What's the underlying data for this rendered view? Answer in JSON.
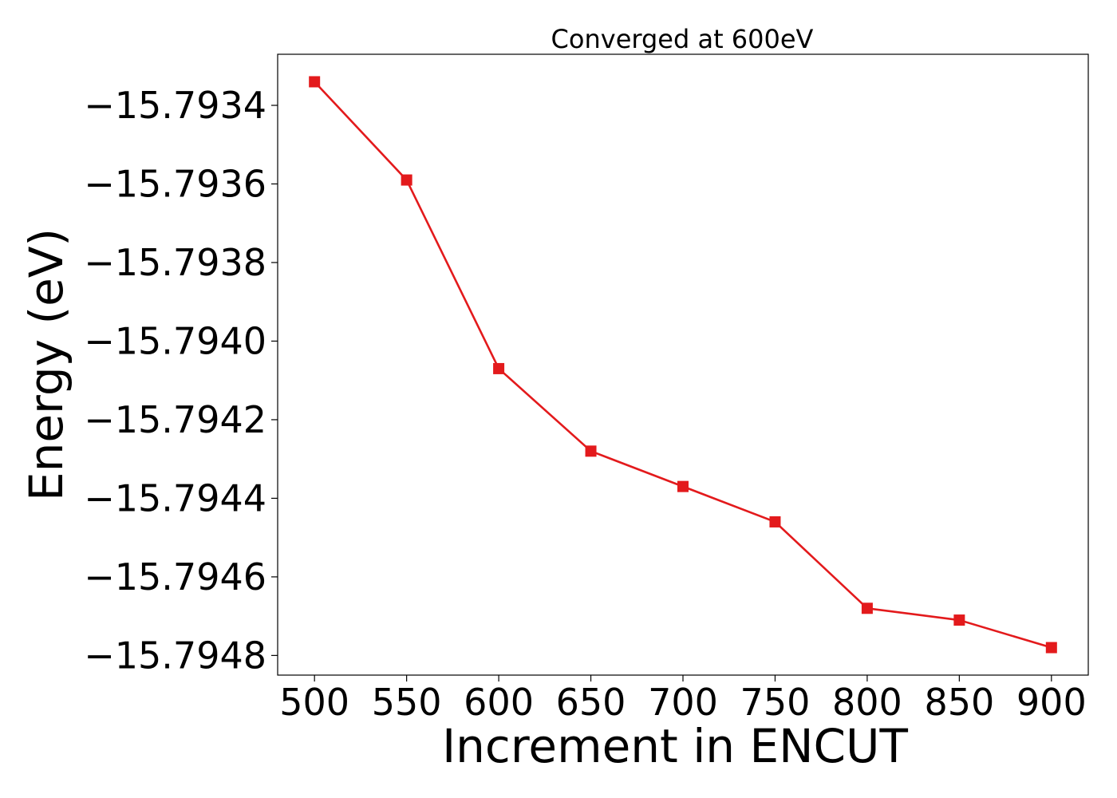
{
  "chart_data": {
    "type": "line",
    "title": "Converged at 600eV",
    "xlabel": "Increment in ENCUT",
    "ylabel": "Energy (eV)",
    "x": [
      500,
      550,
      600,
      650,
      700,
      750,
      800,
      850,
      900
    ],
    "series": [
      {
        "values": [
          -15.79334,
          -15.79359,
          -15.79407,
          -15.79428,
          -15.79437,
          -15.79446,
          -15.79468,
          -15.79471,
          -15.79478
        ],
        "color": "#e31a1c",
        "marker": "square"
      }
    ],
    "xticks": [
      500,
      550,
      600,
      650,
      700,
      750,
      800,
      850,
      900
    ],
    "xtick_labels": [
      "500",
      "550",
      "600",
      "650",
      "700",
      "750",
      "800",
      "850",
      "900"
    ],
    "yticks": [
      -15.7934,
      -15.7936,
      -15.7938,
      -15.794,
      -15.7942,
      -15.7944,
      -15.7946,
      -15.7948
    ],
    "ytick_labels": [
      "−15.7934",
      "−15.7936",
      "−15.7938",
      "−15.7940",
      "−15.7942",
      "−15.7944",
      "−15.7946",
      "−15.7948"
    ],
    "xlim": [
      480,
      920
    ],
    "ylim": [
      -15.79485,
      -15.79327
    ],
    "grid": false,
    "legend": "none"
  }
}
